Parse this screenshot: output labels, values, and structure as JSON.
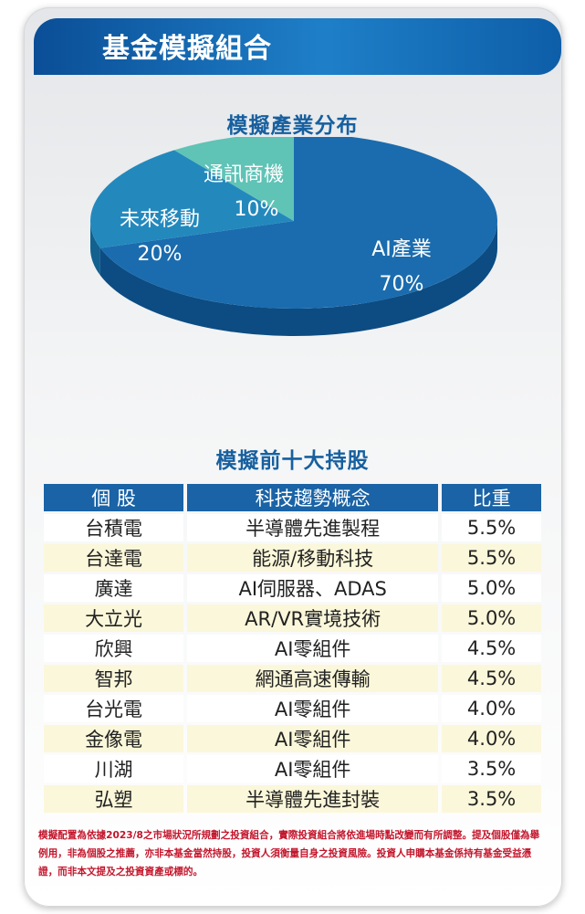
{
  "header": {
    "title": "基金模擬組合"
  },
  "pie_section": {
    "title": "模擬產業分布"
  },
  "chart_data": {
    "type": "pie",
    "title": "模擬產業分布",
    "slices": [
      {
        "label": "AI產業",
        "value": 70,
        "value_label": "70%",
        "color": "#1b6cae",
        "side_color": "#0c4c82"
      },
      {
        "label": "未來移動",
        "value": 20,
        "value_label": "20%",
        "color": "#2389bd",
        "side_color": "#12618e"
      },
      {
        "label": "通訊商機",
        "value": 10,
        "value_label": "10%",
        "color": "#5fc3b6",
        "side_color": "#2f9488"
      }
    ]
  },
  "holdings": {
    "title": "模擬前十大持股",
    "headers": [
      "個 股",
      "科技趨勢概念",
      "比重"
    ],
    "rows": [
      {
        "stock": "台積電",
        "concept": "半導體先進製程",
        "weight": "5.5%"
      },
      {
        "stock": "台達電",
        "concept": "能源/移動科技",
        "weight": "5.5%"
      },
      {
        "stock": "廣達",
        "concept": "AI伺服器、ADAS",
        "weight": "5.0%"
      },
      {
        "stock": "大立光",
        "concept": "AR/VR實境技術",
        "weight": "5.0%"
      },
      {
        "stock": "欣興",
        "concept": "AI零組件",
        "weight": "4.5%"
      },
      {
        "stock": "智邦",
        "concept": "網通高速傳輸",
        "weight": "4.5%"
      },
      {
        "stock": "台光電",
        "concept": "AI零組件",
        "weight": "4.0%"
      },
      {
        "stock": "金像電",
        "concept": "AI零組件",
        "weight": "4.0%"
      },
      {
        "stock": "川湖",
        "concept": "AI零組件",
        "weight": "3.5%"
      },
      {
        "stock": "弘塑",
        "concept": "半導體先進封裝",
        "weight": "3.5%"
      }
    ]
  },
  "disclaimer": "模擬配置為依據2023/8之市場狀況所規劃之投資組合，實際投資組合將依進場時點改變而有所調整。提及個股僅為舉例用，非為個股之推薦，亦非本基金當然持股，投資人須衡量自身之投資風險。投資人申購本基金係持有基金受益憑證，而非本文提及之投資資產或標的。",
  "colors": {
    "banner": "#1a6fb8",
    "title_blue": "#17609f",
    "header_cell": "#1a63a6",
    "alt_row": "#fbf7da",
    "disclaimer": "#c3162c"
  }
}
